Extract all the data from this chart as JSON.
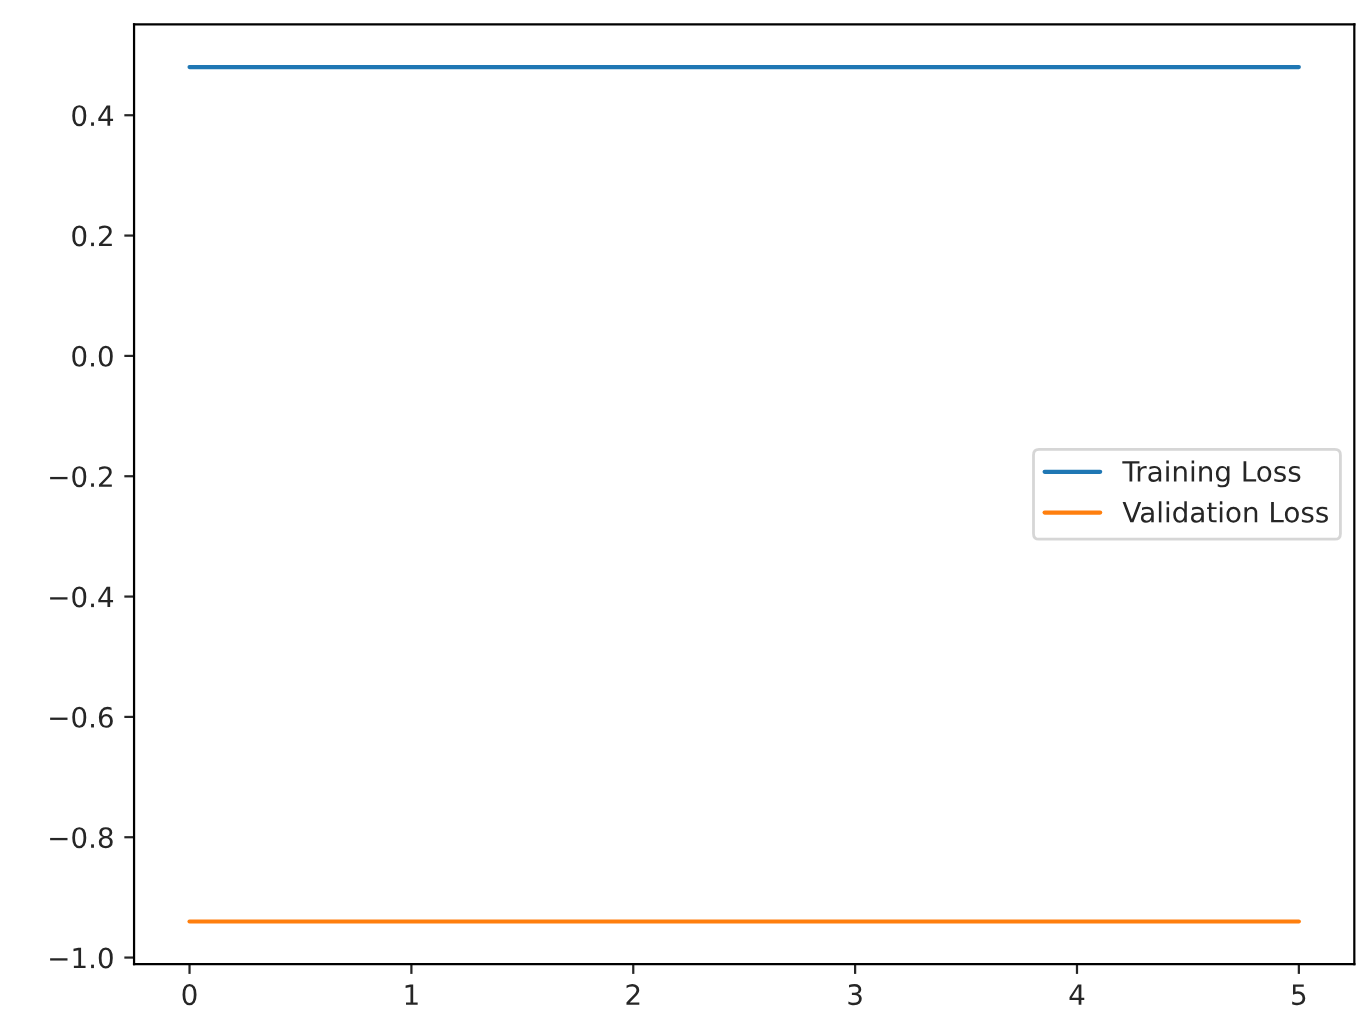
{
  "chart_data": {
    "type": "line",
    "x": [
      0,
      5
    ],
    "series": [
      {
        "name": "Training Loss",
        "color": "#1f77b4",
        "values": [
          0.48,
          0.48
        ]
      },
      {
        "name": "Validation Loss",
        "color": "#ff7f0e",
        "values": [
          -0.94,
          -0.94
        ]
      }
    ],
    "xlim": [
      -0.25,
      5.25
    ],
    "xticks": [
      0,
      1,
      2,
      3,
      4,
      5
    ],
    "ylim": [
      -1.011,
      0.551
    ],
    "yticks": [
      {
        "value": -1.0,
        "label": "−1.0"
      },
      {
        "value": -0.8,
        "label": "−0.8"
      },
      {
        "value": -0.6,
        "label": "−0.6"
      },
      {
        "value": -0.4,
        "label": "−0.4"
      },
      {
        "value": -0.2,
        "label": "−0.2"
      },
      {
        "value": 0.0,
        "label": "0.0"
      },
      {
        "value": 0.2,
        "label": "0.2"
      },
      {
        "value": 0.4,
        "label": "0.4"
      }
    ],
    "legend": "right",
    "grid": false,
    "marker": "none",
    "line_style": "solid"
  }
}
